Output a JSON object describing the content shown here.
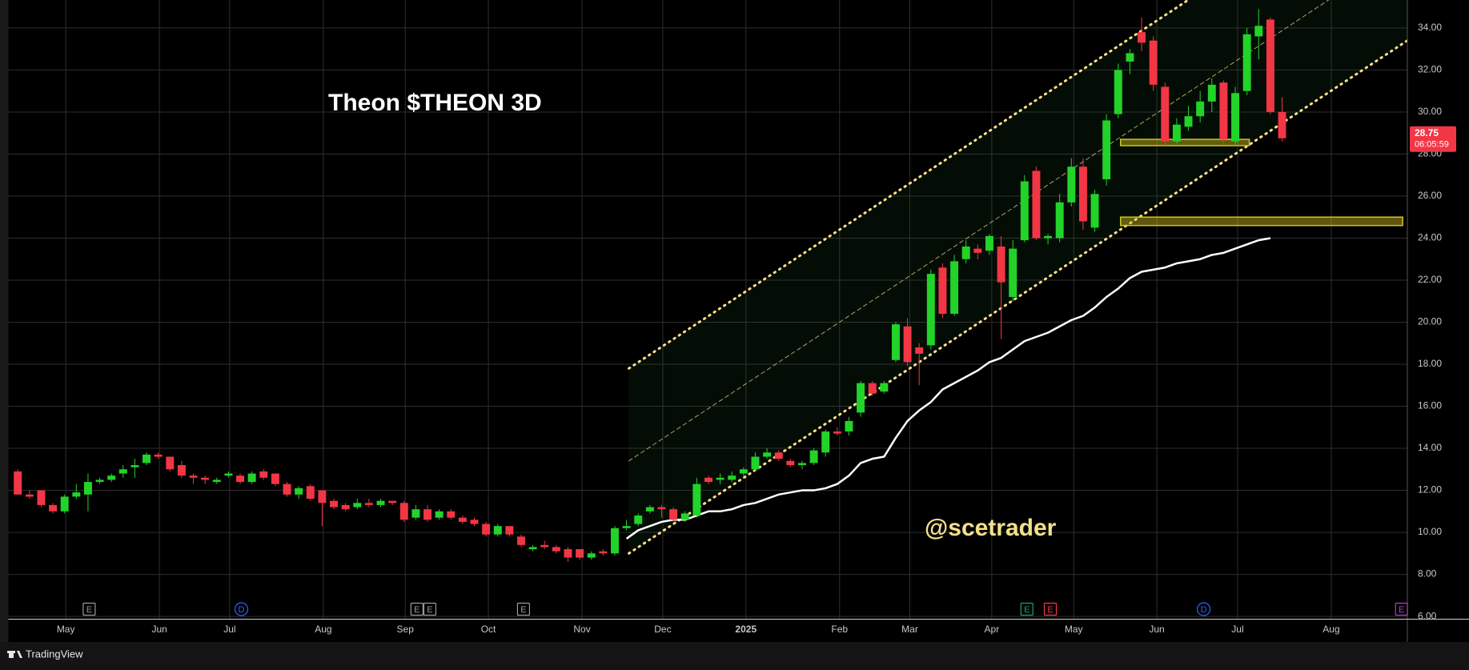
{
  "chart_data": {
    "type": "candlestick",
    "title": "Theon $THEON 3D",
    "watermark": "@scetrader",
    "footer": "TradingView",
    "countdown": "06:05:59",
    "up_color": "#22d32a",
    "down_color": "#f23645",
    "xlim": [
      -0.8,
      118.7
    ],
    "xticks": [
      {
        "value": 4.1,
        "label": "May"
      },
      {
        "value": 12.1,
        "label": "Jun"
      },
      {
        "value": 18.1,
        "label": "Jul"
      },
      {
        "value": 26.1,
        "label": "Aug"
      },
      {
        "value": 33.1,
        "label": "Sep"
      },
      {
        "value": 40.2,
        "label": "Oct"
      },
      {
        "value": 48.2,
        "label": "Nov"
      },
      {
        "value": 55.1,
        "label": "Dec"
      },
      {
        "value": 62.2,
        "label": "2025"
      },
      {
        "value": 70.2,
        "label": "Feb"
      },
      {
        "value": 76.2,
        "label": "Mar"
      },
      {
        "value": 83.2,
        "label": "Apr"
      },
      {
        "value": 90.2,
        "label": "May"
      },
      {
        "value": 97.3,
        "label": "Jun"
      },
      {
        "value": 104.2,
        "label": "Jul"
      },
      {
        "value": 112.2,
        "label": "Aug"
      }
    ],
    "ylim": [
      5.87,
      35.33
    ],
    "yticks": [
      {
        "value": 6,
        "label": "6.00"
      },
      {
        "value": 8,
        "label": "8.00"
      },
      {
        "value": 10,
        "label": "10.00"
      },
      {
        "value": 12,
        "label": "12.00"
      },
      {
        "value": 14,
        "label": "14.00"
      },
      {
        "value": 16,
        "label": "16.00"
      },
      {
        "value": 18,
        "label": "18.00"
      },
      {
        "value": 20,
        "label": "20.00"
      },
      {
        "value": 22,
        "label": "22.00"
      },
      {
        "value": 24,
        "label": "24.00"
      },
      {
        "value": 26,
        "label": "26.00"
      },
      {
        "value": 28,
        "label": "28.00"
      },
      {
        "value": 30,
        "label": "30.00"
      },
      {
        "value": 32,
        "label": "32.00"
      },
      {
        "value": 34,
        "label": "34.00"
      }
    ],
    "grid": true,
    "candles": [
      [
        12.9,
        13.0,
        11.8,
        11.8
      ],
      [
        11.8,
        12.0,
        11.6,
        11.7
      ],
      [
        12.0,
        12.0,
        11.2,
        11.3
      ],
      [
        11.3,
        11.4,
        10.9,
        11.0
      ],
      [
        11.0,
        11.8,
        10.9,
        11.7
      ],
      [
        11.7,
        12.3,
        11.6,
        11.9
      ],
      [
        11.8,
        12.8,
        11.0,
        12.4
      ],
      [
        12.4,
        12.6,
        12.3,
        12.5
      ],
      [
        12.5,
        12.8,
        12.4,
        12.7
      ],
      [
        12.8,
        13.2,
        12.6,
        13.0
      ],
      [
        13.1,
        13.5,
        12.6,
        13.2
      ],
      [
        13.3,
        13.8,
        13.2,
        13.7
      ],
      [
        13.7,
        13.8,
        13.5,
        13.6
      ],
      [
        13.6,
        13.6,
        12.9,
        13.0
      ],
      [
        13.2,
        13.4,
        12.6,
        12.7
      ],
      [
        12.7,
        12.8,
        12.3,
        12.6
      ],
      [
        12.6,
        12.7,
        12.3,
        12.5
      ],
      [
        12.4,
        12.6,
        12.3,
        12.5
      ],
      [
        12.7,
        12.9,
        12.6,
        12.8
      ],
      [
        12.7,
        12.8,
        12.3,
        12.4
      ],
      [
        12.4,
        12.9,
        12.3,
        12.8
      ],
      [
        12.9,
        13.0,
        12.5,
        12.6
      ],
      [
        12.8,
        12.8,
        12.2,
        12.3
      ],
      [
        12.3,
        12.4,
        11.7,
        11.8
      ],
      [
        11.8,
        12.2,
        11.6,
        12.1
      ],
      [
        12.2,
        12.3,
        11.5,
        11.6
      ],
      [
        12.0,
        12.0,
        10.3,
        11.4
      ],
      [
        11.5,
        11.6,
        11.1,
        11.2
      ],
      [
        11.3,
        11.4,
        11.0,
        11.1
      ],
      [
        11.2,
        11.6,
        11.1,
        11.4
      ],
      [
        11.4,
        11.6,
        11.2,
        11.3
      ],
      [
        11.3,
        11.6,
        11.2,
        11.5
      ],
      [
        11.5,
        11.5,
        11.3,
        11.4
      ],
      [
        11.4,
        11.5,
        10.5,
        10.6
      ],
      [
        10.7,
        11.3,
        10.6,
        11.1
      ],
      [
        11.1,
        11.3,
        10.5,
        10.6
      ],
      [
        10.7,
        11.1,
        10.6,
        11.0
      ],
      [
        11.0,
        11.1,
        10.6,
        10.7
      ],
      [
        10.7,
        10.8,
        10.4,
        10.5
      ],
      [
        10.6,
        10.7,
        10.3,
        10.4
      ],
      [
        10.4,
        10.5,
        9.8,
        9.9
      ],
      [
        9.9,
        10.4,
        9.8,
        10.3
      ],
      [
        10.3,
        10.3,
        9.8,
        9.9
      ],
      [
        9.8,
        9.9,
        9.3,
        9.4
      ],
      [
        9.2,
        9.4,
        9.1,
        9.3
      ],
      [
        9.4,
        9.6,
        9.2,
        9.3
      ],
      [
        9.3,
        9.4,
        9.0,
        9.1
      ],
      [
        9.2,
        9.3,
        8.6,
        8.8
      ],
      [
        9.2,
        9.2,
        8.7,
        8.8
      ],
      [
        8.8,
        9.1,
        8.7,
        9.0
      ],
      [
        9.1,
        9.2,
        8.9,
        9.0
      ],
      [
        9.0,
        10.3,
        8.9,
        10.2
      ],
      [
        10.2,
        10.6,
        10.1,
        10.3
      ],
      [
        10.4,
        10.9,
        10.3,
        10.8
      ],
      [
        11.0,
        11.3,
        10.9,
        11.2
      ],
      [
        11.2,
        11.3,
        10.7,
        11.1
      ],
      [
        11.1,
        11.2,
        10.5,
        10.6
      ],
      [
        10.6,
        11.0,
        10.5,
        10.9
      ],
      [
        10.8,
        12.6,
        10.7,
        12.3
      ],
      [
        12.6,
        12.7,
        12.3,
        12.4
      ],
      [
        12.5,
        12.8,
        12.3,
        12.6
      ],
      [
        12.5,
        12.9,
        12.4,
        12.7
      ],
      [
        12.8,
        13.1,
        12.7,
        13.0
      ],
      [
        13.0,
        13.8,
        12.9,
        13.6
      ],
      [
        13.6,
        14.0,
        13.5,
        13.8
      ],
      [
        13.8,
        13.9,
        13.4,
        13.5
      ],
      [
        13.4,
        13.5,
        13.1,
        13.2
      ],
      [
        13.2,
        13.4,
        13.0,
        13.3
      ],
      [
        13.3,
        14.0,
        13.2,
        13.9
      ],
      [
        13.8,
        14.9,
        13.6,
        14.8
      ],
      [
        14.8,
        15.0,
        14.6,
        14.7
      ],
      [
        14.8,
        15.5,
        14.6,
        15.3
      ],
      [
        15.7,
        17.2,
        15.5,
        17.1
      ],
      [
        17.1,
        17.2,
        16.5,
        16.6
      ],
      [
        16.7,
        17.2,
        16.6,
        17.1
      ],
      [
        18.2,
        20.0,
        18.1,
        19.9
      ],
      [
        19.8,
        20.2,
        17.9,
        18.1
      ],
      [
        18.8,
        19.0,
        17.0,
        18.5
      ],
      [
        18.9,
        22.5,
        18.7,
        22.3
      ],
      [
        22.6,
        22.8,
        20.2,
        20.4
      ],
      [
        20.4,
        23.2,
        20.3,
        22.9
      ],
      [
        23.0,
        23.9,
        22.8,
        23.6
      ],
      [
        23.5,
        23.7,
        23.0,
        23.3
      ],
      [
        23.4,
        24.2,
        23.2,
        24.1
      ],
      [
        23.6,
        24.1,
        19.2,
        21.9
      ],
      [
        21.2,
        23.9,
        21.0,
        23.5
      ],
      [
        23.9,
        27.0,
        23.8,
        26.7
      ],
      [
        27.2,
        27.4,
        23.9,
        24.0
      ],
      [
        24.0,
        24.2,
        23.7,
        24.1
      ],
      [
        24.0,
        26.1,
        23.8,
        25.7
      ],
      [
        25.7,
        27.8,
        25.5,
        27.4
      ],
      [
        27.4,
        27.8,
        24.4,
        24.8
      ],
      [
        24.5,
        26.3,
        24.3,
        26.1
      ],
      [
        26.8,
        29.9,
        26.5,
        29.6
      ],
      [
        29.9,
        32.3,
        29.7,
        32.0
      ],
      [
        32.4,
        33.0,
        31.8,
        32.8
      ],
      [
        33.8,
        34.5,
        32.9,
        33.3
      ],
      [
        33.4,
        33.6,
        31.0,
        31.3
      ],
      [
        31.2,
        31.4,
        28.4,
        28.6
      ],
      [
        28.6,
        29.7,
        28.5,
        29.4
      ],
      [
        29.3,
        30.3,
        29.1,
        29.8
      ],
      [
        29.8,
        31.0,
        29.5,
        30.5
      ],
      [
        30.5,
        31.6,
        30.0,
        31.3
      ],
      [
        31.4,
        31.5,
        28.5,
        28.7
      ],
      [
        28.6,
        31.2,
        28.4,
        30.9
      ],
      [
        31.0,
        34.0,
        30.8,
        33.7
      ],
      [
        33.6,
        34.9,
        32.5,
        34.1
      ],
      [
        34.4,
        34.5,
        29.9,
        30.0
      ],
      [
        30.0,
        30.7,
        28.6,
        28.75
      ]
    ],
    "moving_average": {
      "color": "#ffffff",
      "values": [
        null,
        null,
        null,
        null,
        null,
        null,
        null,
        null,
        null,
        null,
        null,
        null,
        null,
        null,
        null,
        null,
        null,
        null,
        null,
        null,
        null,
        null,
        null,
        null,
        null,
        null,
        null,
        null,
        null,
        null,
        null,
        null,
        null,
        null,
        null,
        null,
        null,
        null,
        null,
        null,
        null,
        null,
        null,
        null,
        null,
        null,
        null,
        null,
        null,
        null,
        null,
        null,
        9.7,
        10.1,
        10.3,
        10.5,
        10.6,
        10.6,
        10.8,
        11.0,
        11.0,
        11.1,
        11.3,
        11.4,
        11.6,
        11.8,
        11.9,
        12.0,
        12.0,
        12.1,
        12.3,
        12.7,
        13.3,
        13.5,
        13.6,
        14.5,
        15.3,
        15.8,
        16.2,
        16.8,
        17.1,
        17.4,
        17.7,
        18.1,
        18.3,
        18.7,
        19.1,
        19.3,
        19.5,
        19.8,
        20.1,
        20.3,
        20.7,
        21.2,
        21.6,
        22.1,
        22.4,
        22.5,
        22.6,
        22.8,
        22.9,
        23.0,
        23.2,
        23.3,
        23.5,
        23.7,
        23.9,
        24.0,
        null
      ]
    },
    "channel": {
      "color": "#ffe08a",
      "x": [
        52.2,
        118.7
      ],
      "upper": [
        17.8,
        42.2
      ],
      "middle": [
        13.4,
        37.8
      ],
      "lower": [
        9.0,
        33.4
      ]
    },
    "zones": [
      {
        "color": "#d4c21a",
        "x": [
          94.2,
          105.2
        ],
        "y": [
          28.4,
          28.7
        ]
      },
      {
        "color": "#d4c21a",
        "x": [
          94.2,
          118.3
        ],
        "y": [
          24.6,
          25.0
        ]
      }
    ],
    "events": [
      {
        "label": "E",
        "x": 6.1,
        "color": "#9a9a9a"
      },
      {
        "label": "D",
        "x": 19.1,
        "color": "#2962ff"
      },
      {
        "label": "E",
        "x": 34.1,
        "color": "#9a9a9a"
      },
      {
        "label": "E",
        "x": 35.2,
        "color": "#9a9a9a"
      },
      {
        "label": "E",
        "x": 43.2,
        "color": "#9a9a9a"
      },
      {
        "label": "E",
        "x": 86.2,
        "color": "#1e9e6a"
      },
      {
        "label": "E",
        "x": 88.2,
        "color": "#f23645"
      },
      {
        "label": "D",
        "x": 101.3,
        "color": "#2962ff"
      },
      {
        "label": "E",
        "x": 118.2,
        "color": "#b03ad6"
      }
    ]
  }
}
